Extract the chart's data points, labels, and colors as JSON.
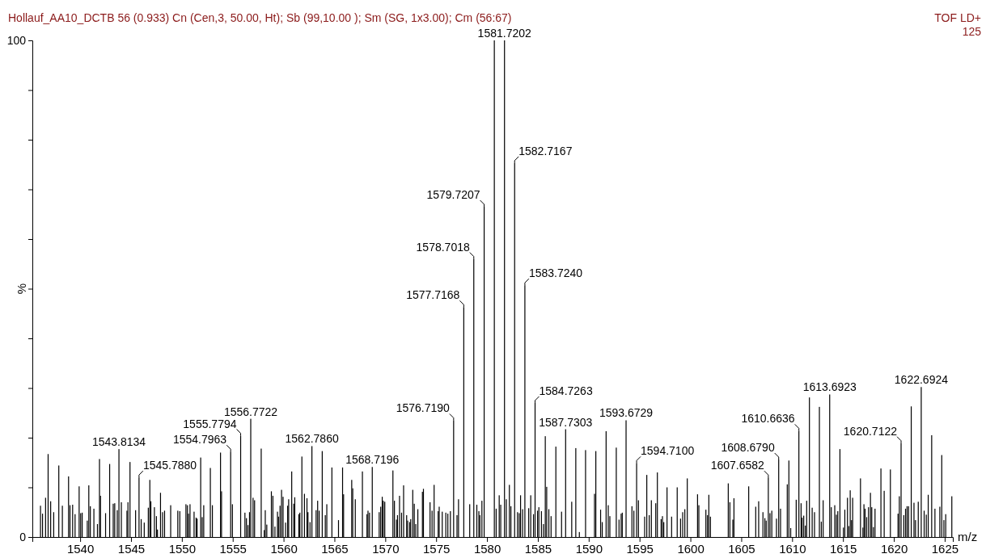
{
  "chart_data": {
    "type": "bar",
    "title": "Hollauf_AA10_DCTB  56 (0.933) Cn (Cen,3, 50.00, Ht); Sb (99,10.00 ); Sm (SG, 1x3.00); Cm (56:67)",
    "xlabel": "m/z",
    "ylabel": "%",
    "color": "#000000",
    "x": [
      1536.1,
      1536.3,
      1536.6,
      1536.85,
      1537.1,
      1537.4,
      1537.9,
      1538.25,
      1538.86,
      1539.0,
      1539.26,
      1539.5,
      1539.9,
      1540.05,
      1540.2,
      1540.7,
      1540.85,
      1541.0,
      1541.35,
      1541.7,
      1541.9,
      1542.0,
      1542.5,
      1542.9,
      1543.25,
      1543.4,
      1543.65,
      1543.8134,
      1544.05,
      1544.6,
      1544.7,
      1544.9,
      1545.45,
      1545.788,
      1546.0,
      1546.3,
      1546.7,
      1546.85,
      1546.95,
      1547.3,
      1547.5,
      1547.6,
      1547.9,
      1548.1,
      1548.3,
      1548.9,
      1549.6,
      1549.8,
      1550.4,
      1550.55,
      1550.65,
      1550.8,
      1551.2,
      1551.4,
      1551.5,
      1551.85,
      1552.0,
      1552.15,
      1552.8,
      1553.0,
      1553.8,
      1553.9,
      1554.7963,
      1554.97,
      1555.7794,
      1556.2,
      1556.35,
      1556.5,
      1556.65,
      1556.7722,
      1557.0,
      1557.15,
      1557.8,
      1558.1,
      1558.2,
      1558.35,
      1558.8,
      1558.95,
      1559.15,
      1559.4,
      1559.5,
      1559.65,
      1559.8,
      1559.95,
      1560.2,
      1560.4,
      1560.5,
      1560.8,
      1561.0,
      1561.1,
      1561.5,
      1561.6,
      1561.8,
      1562.05,
      1562.3,
      1562.4,
      1562.6,
      1562.786,
      1563.2,
      1563.35,
      1563.5,
      1563.8,
      1564.1,
      1564.25,
      1564.75,
      1565.4,
      1565.8,
      1565.9,
      1566.7,
      1566.8,
      1567.05,
      1567.75,
      1568.2,
      1568.3,
      1568.45,
      1568.7196,
      1569.4,
      1569.55,
      1569.7,
      1569.8,
      1569.95,
      1570.75,
      1570.9,
      1571.1,
      1571.2,
      1571.4,
      1571.6,
      1571.8,
      1572.1,
      1572.2,
      1572.4,
      1572.5,
      1572.7,
      1572.85,
      1573.0,
      1573.2,
      1573.65,
      1573.75,
      1574.4,
      1574.6,
      1574.8,
      1575.2,
      1575.3,
      1575.6,
      1575.95,
      1576.15,
      1576.4,
      1576.719,
      1577.05,
      1577.2,
      1577.7168,
      1578.3,
      1578.7018,
      1579.0,
      1579.2,
      1579.3,
      1579.5,
      1579.7207,
      1580.72,
      1580.9,
      1581.2,
      1581.35,
      1581.7202,
      1581.9,
      1582.2,
      1582.35,
      1582.7167,
      1583.0,
      1583.17,
      1583.3,
      1583.5,
      1583.724,
      1584.1,
      1584.3,
      1584.57,
      1584.7263,
      1584.97,
      1585.1,
      1585.35,
      1585.55,
      1585.73,
      1585.87,
      1586.08,
      1586.3,
      1586.77,
      1587.33,
      1587.7303,
      1588.33,
      1588.73,
      1589.08,
      1589.69,
      1590.57,
      1590.7,
      1591.17,
      1591.33,
      1591.71,
      1591.92,
      1592.08,
      1592.71,
      1592.98,
      1593.19,
      1593.3,
      1593.6729,
      1594.25,
      1594.44,
      1594.71,
      1594.89,
      1595.5,
      1595.71,
      1595.95,
      1596.16,
      1596.59,
      1596.75,
      1597.12,
      1597.25,
      1597.38,
      1597.7,
      1598.15,
      1598.7,
      1599.03,
      1599.24,
      1599.45,
      1599.69,
      1600.7,
      1600.83,
      1601.52,
      1601.68,
      1601.81,
      1601.97,
      1603.72,
      1603.88,
      1604.17,
      1604.28,
      1605.73,
      1606.42,
      1606.71,
      1607.13,
      1607.32,
      1607.45,
      1607.6582,
      1607.82,
      1608.0,
      1608.46,
      1608.679,
      1608.86,
      1609.52,
      1609.68,
      1609.86,
      1610.4,
      1610.6636,
      1610.88,
      1610.98,
      1611.14,
      1611.3,
      1611.43,
      1611.7,
      1611.97,
      1612.2,
      1612.68,
      1612.87,
      1613.05,
      1613.6923,
      1613.85,
      1614.19,
      1614.35,
      1614.49,
      1614.7,
      1615.04,
      1615.18,
      1615.44,
      1615.57,
      1615.71,
      1615.84,
      1615.95,
      1616.72,
      1616.96,
      1617.06,
      1617.17,
      1617.33,
      1617.51,
      1617.7,
      1617.83,
      1617.99,
      1618.15,
      1618.73,
      1619.05,
      1619.66,
      1620.41,
      1620.54,
      1620.7122,
      1620.98,
      1621.15,
      1621.3,
      1621.45,
      1621.71,
      1621.98,
      1622.13,
      1622.4,
      1622.6924,
      1622.98,
      1623.19,
      1623.38,
      1623.72,
      1624.04,
      1624.52,
      1624.71,
      1624.92,
      1625.1,
      1625.7
    ],
    "values": [
      6.3,
      4.7,
      7.9,
      16.7,
      7.2,
      5.0,
      14.4,
      6.3,
      12.2,
      6.4,
      6.5,
      4.6,
      10.2,
      4.8,
      4.9,
      3.3,
      10.4,
      6.2,
      5.7,
      2.6,
      15.7,
      8.3,
      4.8,
      14.7,
      6.7,
      6.8,
      5.4,
      17.7,
      7.0,
      5.3,
      7.0,
      15.1,
      5.4,
      12.0,
      3.6,
      2.9,
      5.9,
      11.5,
      7.2,
      6.0,
      4.2,
      1.5,
      8.9,
      5.0,
      5.3,
      6.4,
      5.3,
      5.2,
      6.6,
      6.4,
      4.7,
      6.6,
      5.1,
      3.9,
      3.7,
      16.0,
      4.0,
      6.4,
      13.9,
      6.4,
      17.0,
      9.2,
      17.2,
      6.6,
      20.4,
      4.9,
      3.8,
      2.4,
      5.0,
      23.8,
      7.9,
      7.4,
      17.8,
      1.4,
      5.4,
      2.5,
      9.2,
      8.3,
      2.1,
      5.1,
      4.1,
      6.3,
      9.5,
      8.1,
      2.9,
      6.3,
      7.6,
      13.2,
      6.7,
      8.0,
      4.6,
      4.9,
      16.2,
      8.7,
      7.8,
      5.0,
      3.0,
      18.3,
      5.4,
      7.3,
      5.3,
      17.3,
      4.4,
      6.6,
      14.0,
      3.4,
      14.0,
      8.6,
      11.5,
      9.8,
      7.6,
      13.2,
      4.6,
      5.3,
      4.9,
      14.1,
      5.0,
      6.1,
      8.1,
      7.3,
      7.1,
      13.4,
      7.3,
      3.5,
      4.4,
      8.3,
      4.9,
      10.4,
      4.4,
      3.3,
      3.0,
      3.6,
      9.5,
      6.7,
      2.6,
      5.6,
      9.1,
      9.7,
      7.0,
      5.3,
      10.5,
      5.2,
      6.1,
      5.1,
      4.9,
      4.7,
      5.2,
      23.5,
      4.4,
      7.6,
      46.3,
      6.6,
      56.0,
      6.5,
      5.2,
      4.4,
      7.3,
      66.5,
      100,
      5.7,
      8.4,
      6.5,
      100,
      7.6,
      10.5,
      6.2,
      75.3,
      5.0,
      4.8,
      8.4,
      5.6,
      50.7,
      5.8,
      8.4,
      4.6,
      27.0,
      5.3,
      6.0,
      5.2,
      2.6,
      20.3,
      10.1,
      5.6,
      4.2,
      18.2,
      5.1,
      21.7,
      7.1,
      17.9,
      1.0,
      17.5,
      8.7,
      17.3,
      5.5,
      3.0,
      21.3,
      6.4,
      4.2,
      18.0,
      3.5,
      4.7,
      4.9,
      23.5,
      6.2,
      5.3,
      14.9,
      7.4,
      4.1,
      12.5,
      4.4,
      7.4,
      6.8,
      13.0,
      3.6,
      4.2,
      3.0,
      10.0,
      4.1,
      10.0,
      3.7,
      5.0,
      5.6,
      11.8,
      8.6,
      6.4,
      5.5,
      4.4,
      8.5,
      4.1,
      10.8,
      7.0,
      3.5,
      7.8,
      10.2,
      6.1,
      7.2,
      5.0,
      3.8,
      3.3,
      12.0,
      4.8,
      5.3,
      3.7,
      15.6,
      5.7,
      10.6,
      15.4,
      1.8,
      7.5,
      21.4,
      6.8,
      3.9,
      4.3,
      2.3,
      7.3,
      28.1,
      5.9,
      5.0,
      26.2,
      3.1,
      7.4,
      28.7,
      6.0,
      6.4,
      4.5,
      5.2,
      17.7,
      1.9,
      5.5,
      7.9,
      2.2,
      9.4,
      3.4,
      7.9,
      11.8,
      1.9,
      6.6,
      5.7,
      4.0,
      6.0,
      8.9,
      6.0,
      2.0,
      5.7,
      13.8,
      9.3,
      13.6,
      4.7,
      8.2,
      18.9,
      4.4,
      5.7,
      6.2,
      6.2,
      26.3,
      6.9,
      3.4,
      7.1,
      30.2,
      5.3,
      4.5,
      8.5,
      20.5,
      5.7,
      6.1,
      16.5,
      3.4,
      4.6,
      8.2
    ],
    "xlim": [
      1535.3,
      1625.8
    ],
    "xticks": [
      1540,
      1545,
      1550,
      1555,
      1560,
      1565,
      1570,
      1575,
      1580,
      1585,
      1590,
      1595,
      1600,
      1605,
      1610,
      1615,
      1620,
      1625
    ],
    "ylim": [
      0,
      100
    ],
    "yticks": [
      0,
      {
        "value": 10,
        "label": null
      },
      {
        "value": 20,
        "label": null
      },
      {
        "value": 30,
        "label": null
      },
      {
        "value": 40,
        "label": null
      },
      {
        "value": 50,
        "label": null
      },
      {
        "value": 60,
        "label": null
      },
      {
        "value": 70,
        "label": null
      },
      {
        "value": 80,
        "label": null
      },
      {
        "value": 90,
        "label": null
      },
      100
    ],
    "grid": false,
    "annotations": [
      "TOF LD+",
      "125",
      {
        "text": "1543.8134",
        "x": 1543.8134,
        "y": 17.7
      },
      {
        "text": "1545.7880",
        "x": 1545.788,
        "y": 12.0
      },
      {
        "text": "1554.7963",
        "x": 1554.7963,
        "y": 17.2
      },
      {
        "text": "1555.7794",
        "x": 1555.7794,
        "y": 20.4
      },
      {
        "text": "1556.7722",
        "x": 1556.7722,
        "y": 23.8
      },
      {
        "text": "1562.7860",
        "x": 1562.786,
        "y": 18.3
      },
      {
        "text": "1568.7196",
        "x": 1568.7196,
        "y": 14.1
      },
      {
        "text": "1576.7190",
        "x": 1576.719,
        "y": 23.5
      },
      {
        "text": "1577.7168",
        "x": 1577.7168,
        "y": 46.3
      },
      {
        "text": "1578.7018",
        "x": 1578.7018,
        "y": 56.0
      },
      {
        "text": "1579.7207",
        "x": 1579.7207,
        "y": 66.5
      },
      {
        "text": "1581.7202",
        "x": 1581.7202,
        "y": 100
      },
      {
        "text": "1582.7167",
        "x": 1582.7167,
        "y": 75.3
      },
      {
        "text": "1583.7240",
        "x": 1583.724,
        "y": 50.7
      },
      {
        "text": "1584.7263",
        "x": 1584.7263,
        "y": 27.0
      },
      {
        "text": "1587.7303",
        "x": 1587.7303,
        "y": 21.7
      },
      {
        "text": "1593.6729",
        "x": 1593.6729,
        "y": 23.5
      },
      {
        "text": "1594.7100",
        "x": 1594.71,
        "y": 14.9
      },
      {
        "text": "1607.6582",
        "x": 1607.6582,
        "y": 12.0
      },
      {
        "text": "1608.6790",
        "x": 1608.679,
        "y": 15.6
      },
      {
        "text": "1610.6636",
        "x": 1610.6636,
        "y": 21.4
      },
      {
        "text": "1613.6923",
        "x": 1613.6923,
        "y": 28.7
      },
      {
        "text": "1620.7122",
        "x": 1620.7122,
        "y": 18.9
      },
      {
        "text": "1622.6924",
        "x": 1622.6924,
        "y": 30.2
      }
    ]
  }
}
